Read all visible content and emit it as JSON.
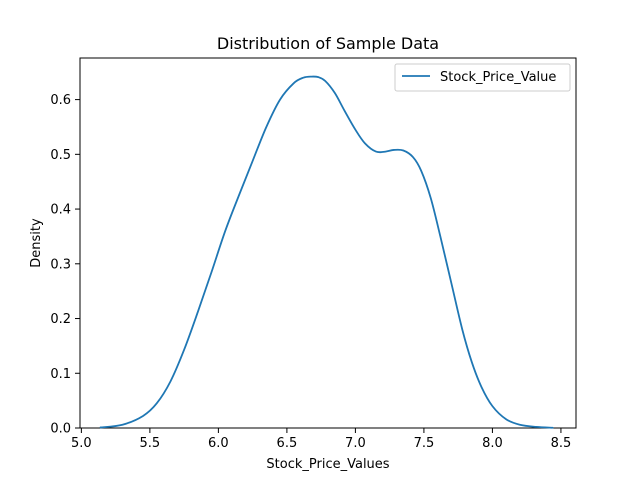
{
  "chart_data": {
    "type": "line",
    "title": "Distribution of Sample Data",
    "xlabel": "Stock_Price_Values",
    "ylabel": "Density",
    "xlim": [
      4.99,
      8.61
    ],
    "ylim": [
      0.0,
      0.676
    ],
    "xticks": [
      5.0,
      5.5,
      6.0,
      6.5,
      7.0,
      7.5,
      8.0,
      8.5
    ],
    "xtick_labels": [
      "5.0",
      "5.5",
      "6.0",
      "6.5",
      "7.0",
      "7.5",
      "8.0",
      "8.5"
    ],
    "yticks": [
      0.0,
      0.1,
      0.2,
      0.3,
      0.4,
      0.5,
      0.6
    ],
    "ytick_labels": [
      "0.0",
      "0.1",
      "0.2",
      "0.3",
      "0.4",
      "0.5",
      "0.6"
    ],
    "grid": false,
    "legend_position": "top-right",
    "series": [
      {
        "name": "Stock_Price_Value",
        "color": "#1f77b4",
        "x": [
          5.14,
          5.3,
          5.45,
          5.55,
          5.65,
          5.75,
          5.85,
          5.95,
          6.05,
          6.15,
          6.25,
          6.35,
          6.45,
          6.55,
          6.62,
          6.68,
          6.73,
          6.78,
          6.85,
          6.92,
          7.0,
          7.07,
          7.15,
          7.22,
          7.28,
          7.35,
          7.42,
          7.48,
          7.55,
          7.62,
          7.7,
          7.78,
          7.85,
          7.92,
          8.0,
          8.1,
          8.2,
          8.32,
          8.44
        ],
        "y": [
          0.001,
          0.006,
          0.022,
          0.045,
          0.085,
          0.143,
          0.212,
          0.285,
          0.36,
          0.425,
          0.488,
          0.55,
          0.6,
          0.63,
          0.64,
          0.642,
          0.641,
          0.634,
          0.612,
          0.58,
          0.545,
          0.52,
          0.505,
          0.505,
          0.508,
          0.507,
          0.495,
          0.47,
          0.42,
          0.35,
          0.265,
          0.18,
          0.12,
          0.075,
          0.04,
          0.016,
          0.006,
          0.002,
          0.0005
        ]
      }
    ]
  }
}
